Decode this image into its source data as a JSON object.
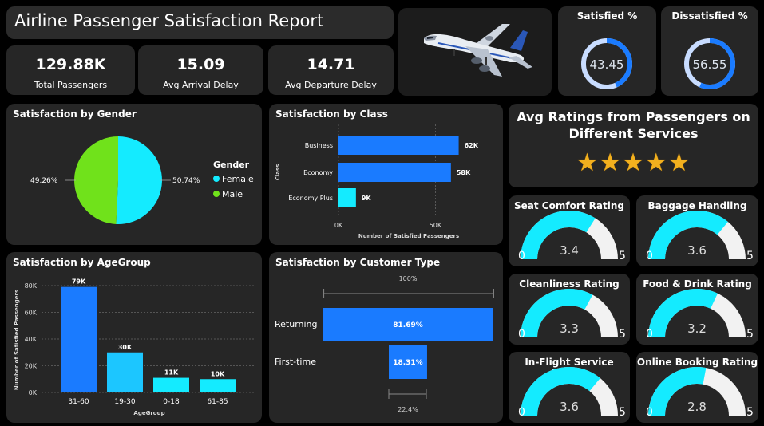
{
  "header": {
    "title": "Airline Passenger Satisfaction Report"
  },
  "kpis": [
    {
      "value": "129.88K",
      "label": "Total Passengers"
    },
    {
      "value": "15.09",
      "label": "Avg Arrival Delay"
    },
    {
      "value": "14.71",
      "label": "Avg Departure Delay"
    }
  ],
  "donuts": [
    {
      "title": "Satisfied %",
      "value": "43.45",
      "fraction": 0.4345
    },
    {
      "title": "Dissatisfied %",
      "value": "56.55",
      "fraction": 0.5655
    }
  ],
  "colors": {
    "accent": "#1a7bff",
    "cyan": "#14ebff",
    "green": "#70e21b",
    "card": "#262626",
    "track": "#c8dcff",
    "gauge_track": "#f2f2f2"
  },
  "ratings": {
    "title_line1": "Avg Ratings from Passengers on",
    "title_line2": "Different Services",
    "stars": "★★★★★"
  },
  "chart_data": [
    {
      "type": "pie",
      "title": "Satisfaction by Gender",
      "legend_title": "Gender",
      "categories": [
        "Female",
        "Male"
      ],
      "values": [
        50.74,
        49.26
      ],
      "labels": [
        "50.74%",
        "49.26%"
      ],
      "colors": [
        "#14ebff",
        "#70e21b"
      ],
      "legend_position": "right"
    },
    {
      "type": "bar",
      "orientation": "horizontal",
      "title": "Satisfaction by Class",
      "categories": [
        "Business",
        "Economy",
        "Economy Plus"
      ],
      "values": [
        62,
        58,
        9
      ],
      "data_labels": [
        "62K",
        "58K",
        "9K"
      ],
      "xlabel": "Number of Satisfied Passengers",
      "ylabel": "Class",
      "xticks": [
        "0K",
        "50K"
      ],
      "xlim": [
        0,
        70
      ],
      "grid": true
    },
    {
      "type": "bar",
      "title": "Satisfaction by AgeGroup",
      "categories": [
        "31-60",
        "19-30",
        "0-18",
        "61-85"
      ],
      "values": [
        79,
        30,
        11,
        10
      ],
      "data_labels": [
        "79K",
        "30K",
        "11K",
        "10K"
      ],
      "xlabel": "AgeGroup",
      "ylabel": "Number of Satisfied Passengers",
      "yticks": [
        "0K",
        "20K",
        "40K",
        "60K",
        "80K"
      ],
      "ylim": [
        0,
        85
      ],
      "grid": true
    },
    {
      "type": "bar",
      "subtype": "funnel",
      "title": "Satisfaction by Customer Type",
      "categories": [
        "Returning",
        "First-time"
      ],
      "values": [
        81.69,
        18.31
      ],
      "data_labels": [
        "81.69%",
        "18.31%"
      ],
      "top_label": "100%",
      "bottom_label": "22.4%"
    }
  ],
  "gauges": [
    {
      "title": "Seat Comfort Rating",
      "value": 3.4,
      "display": "3.4",
      "min": "0",
      "max": "5"
    },
    {
      "title": "Baggage Handling",
      "value": 3.6,
      "display": "3.6",
      "min": "0",
      "max": "5"
    },
    {
      "title": "Cleanliness Rating",
      "value": 3.3,
      "display": "3.3",
      "min": "0",
      "max": "5"
    },
    {
      "title": "Food & Drink Rating",
      "value": 3.2,
      "display": "3.2",
      "min": "0",
      "max": "5"
    },
    {
      "title": "In-Flight Service Rating",
      "value": 3.6,
      "display": "3.6",
      "min": "0",
      "max": "5"
    },
    {
      "title": "Online Booking Rating",
      "value": 2.8,
      "display": "2.8",
      "min": "0",
      "max": "5"
    }
  ]
}
